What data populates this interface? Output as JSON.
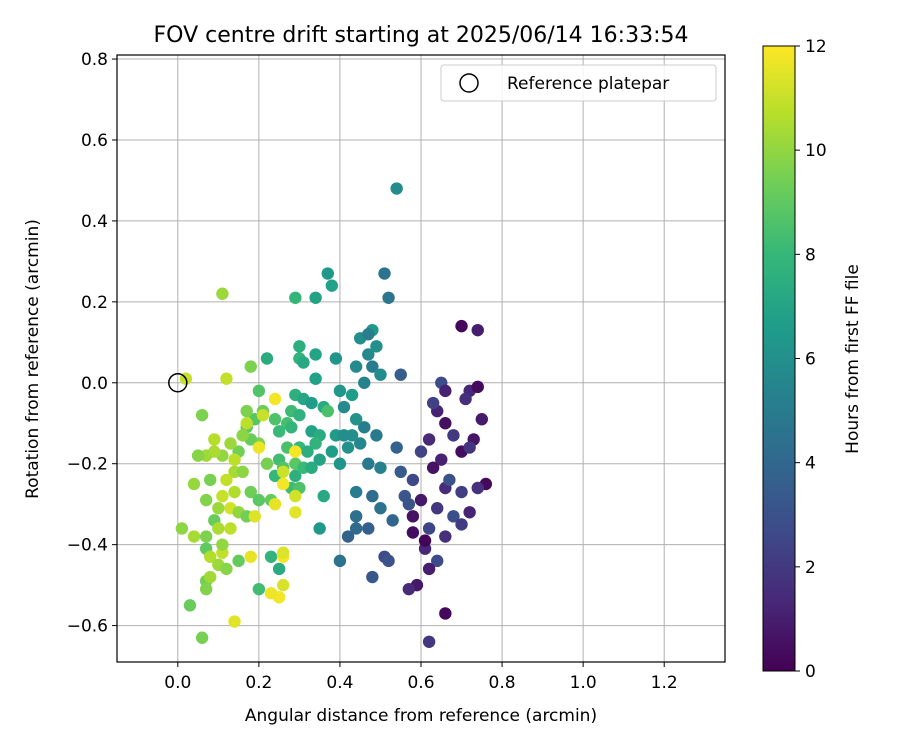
{
  "chart_data": {
    "type": "scatter",
    "title": "FOV centre drift starting at 2025/06/14 16:33:54",
    "xlabel": "Angular distance from reference (arcmin)",
    "ylabel": "Rotation from reference (arcmin)",
    "xlim": [
      -0.15,
      1.35
    ],
    "ylim": [
      -0.69,
      0.81
    ],
    "xticks": [
      0.0,
      0.2,
      0.4,
      0.6,
      0.8,
      1.0,
      1.2
    ],
    "xtick_labels": [
      "0.0",
      "0.2",
      "0.4",
      "0.6",
      "0.8",
      "1.0",
      "1.2"
    ],
    "yticks": [
      -0.6,
      -0.4,
      -0.2,
      0.0,
      0.2,
      0.4,
      0.6,
      0.8
    ],
    "ytick_labels": [
      "−0.6",
      "−0.4",
      "−0.2",
      "0.0",
      "0.2",
      "0.4",
      "0.6",
      "0.8"
    ],
    "grid": true,
    "legend": {
      "position": "upper-right",
      "entries": [
        "Reference platepar"
      ]
    },
    "reference_point": {
      "x": 0.0,
      "y": 0.0
    },
    "colorbar": {
      "label": "Hours from first FF file",
      "range": [
        0,
        12
      ],
      "ticks": [
        0,
        2,
        4,
        6,
        8,
        10,
        12
      ],
      "tick_labels": [
        "0",
        "2",
        "4",
        "6",
        "8",
        "10",
        "12"
      ],
      "colormap": "viridis",
      "colors": [
        "#440154",
        "#482878",
        "#3e4a89",
        "#31688e",
        "#26828e",
        "#1f9e89",
        "#35b779",
        "#6ece58",
        "#b5de2b",
        "#fde725"
      ]
    },
    "points": [
      {
        "x": 0.7,
        "y": 0.14,
        "h": 0.2
      },
      {
        "x": 0.74,
        "y": 0.13,
        "h": 1.0
      },
      {
        "x": 0.72,
        "y": -0.02,
        "h": 1.3
      },
      {
        "x": 0.74,
        "y": -0.01,
        "h": 0.3
      },
      {
        "x": 0.71,
        "y": -0.04,
        "h": 1.6
      },
      {
        "x": 0.75,
        "y": -0.09,
        "h": 0.9
      },
      {
        "x": 0.64,
        "y": -0.07,
        "h": 1.2
      },
      {
        "x": 0.66,
        "y": -0.1,
        "h": 0.5
      },
      {
        "x": 0.68,
        "y": -0.13,
        "h": 2.0
      },
      {
        "x": 0.73,
        "y": -0.14,
        "h": 0.7
      },
      {
        "x": 0.62,
        "y": -0.14,
        "h": 1.4
      },
      {
        "x": 0.6,
        "y": -0.17,
        "h": 2.4
      },
      {
        "x": 0.65,
        "y": -0.19,
        "h": 1.1
      },
      {
        "x": 0.7,
        "y": -0.17,
        "h": 0.4
      },
      {
        "x": 0.72,
        "y": -0.16,
        "h": 1.8
      },
      {
        "x": 0.63,
        "y": -0.21,
        "h": 0.6
      },
      {
        "x": 0.58,
        "y": -0.24,
        "h": 2.6
      },
      {
        "x": 0.66,
        "y": -0.26,
        "h": 1.5
      },
      {
        "x": 0.7,
        "y": -0.27,
        "h": 2.2
      },
      {
        "x": 0.76,
        "y": -0.25,
        "h": 0.3
      },
      {
        "x": 0.74,
        "y": -0.26,
        "h": 1.7
      },
      {
        "x": 0.6,
        "y": -0.29,
        "h": 0.8
      },
      {
        "x": 0.64,
        "y": -0.31,
        "h": 1.9
      },
      {
        "x": 0.68,
        "y": -0.33,
        "h": 2.9
      },
      {
        "x": 0.72,
        "y": -0.32,
        "h": 1.2
      },
      {
        "x": 0.56,
        "y": -0.28,
        "h": 3.2
      },
      {
        "x": 0.58,
        "y": -0.33,
        "h": 0.6
      },
      {
        "x": 0.62,
        "y": -0.36,
        "h": 2.5
      },
      {
        "x": 0.66,
        "y": -0.38,
        "h": 1.6
      },
      {
        "x": 0.7,
        "y": -0.35,
        "h": 2.1
      },
      {
        "x": 0.58,
        "y": -0.37,
        "h": 0.4
      },
      {
        "x": 0.61,
        "y": -0.41,
        "h": 1.3
      },
      {
        "x": 0.64,
        "y": -0.44,
        "h": 2.7
      },
      {
        "x": 0.62,
        "y": -0.46,
        "h": 1.0
      },
      {
        "x": 0.59,
        "y": -0.5,
        "h": 0.8
      },
      {
        "x": 0.57,
        "y": -0.51,
        "h": 1.4
      },
      {
        "x": 0.66,
        "y": -0.57,
        "h": 0.2
      },
      {
        "x": 0.62,
        "y": -0.64,
        "h": 1.9
      },
      {
        "x": 0.61,
        "y": -0.39,
        "h": 0.1
      },
      {
        "x": 0.67,
        "y": -0.24,
        "h": 3.0
      },
      {
        "x": 0.63,
        "y": -0.05,
        "h": 2.3
      },
      {
        "x": 0.65,
        "y": 0.0,
        "h": 2.8
      },
      {
        "x": 0.66,
        "y": -0.02,
        "h": 1.1
      },
      {
        "x": 0.55,
        "y": 0.02,
        "h": 3.5
      },
      {
        "x": 0.54,
        "y": -0.16,
        "h": 3.8
      },
      {
        "x": 0.55,
        "y": -0.22,
        "h": 3.4
      },
      {
        "x": 0.57,
        "y": -0.3,
        "h": 3.1
      },
      {
        "x": 0.53,
        "y": -0.34,
        "h": 3.9
      },
      {
        "x": 0.51,
        "y": -0.43,
        "h": 2.7
      },
      {
        "x": 0.52,
        "y": -0.44,
        "h": 3.0
      },
      {
        "x": 0.48,
        "y": -0.48,
        "h": 3.3
      },
      {
        "x": 0.47,
        "y": -0.36,
        "h": 3.6
      },
      {
        "x": 0.44,
        "y": -0.33,
        "h": 4.4
      },
      {
        "x": 0.48,
        "y": -0.28,
        "h": 4.2
      },
      {
        "x": 0.5,
        "y": -0.31,
        "h": 4.6
      },
      {
        "x": 0.47,
        "y": -0.2,
        "h": 4.8
      },
      {
        "x": 0.5,
        "y": -0.21,
        "h": 5.3
      },
      {
        "x": 0.49,
        "y": -0.13,
        "h": 4.9
      },
      {
        "x": 0.44,
        "y": -0.27,
        "h": 5.0
      },
      {
        "x": 0.42,
        "y": -0.38,
        "h": 3.8
      },
      {
        "x": 0.4,
        "y": -0.44,
        "h": 4.5
      },
      {
        "x": 0.44,
        "y": -0.36,
        "h": 4.1
      },
      {
        "x": 0.45,
        "y": -0.15,
        "h": 5.5
      },
      {
        "x": 0.43,
        "y": -0.13,
        "h": 5.9
      },
      {
        "x": 0.46,
        "y": -0.11,
        "h": 5.2
      },
      {
        "x": 0.44,
        "y": -0.09,
        "h": 6.1
      },
      {
        "x": 0.41,
        "y": -0.06,
        "h": 5.7
      },
      {
        "x": 0.4,
        "y": -0.02,
        "h": 6.3
      },
      {
        "x": 0.46,
        "y": 0.0,
        "h": 5.4
      },
      {
        "x": 0.48,
        "y": 0.04,
        "h": 5.0
      },
      {
        "x": 0.5,
        "y": 0.02,
        "h": 5.8
      },
      {
        "x": 0.47,
        "y": 0.07,
        "h": 5.6
      },
      {
        "x": 0.45,
        "y": 0.11,
        "h": 5.9
      },
      {
        "x": 0.48,
        "y": 0.13,
        "h": 6.4
      },
      {
        "x": 0.47,
        "y": 0.12,
        "h": 5.1
      },
      {
        "x": 0.49,
        "y": 0.09,
        "h": 6.0
      },
      {
        "x": 0.44,
        "y": 0.04,
        "h": 5.7
      },
      {
        "x": 0.43,
        "y": -0.03,
        "h": 6.6
      },
      {
        "x": 0.39,
        "y": 0.06,
        "h": 6.2
      },
      {
        "x": 0.52,
        "y": 0.21,
        "h": 4.7
      },
      {
        "x": 0.51,
        "y": 0.27,
        "h": 4.6
      },
      {
        "x": 0.54,
        "y": 0.48,
        "h": 5.8
      },
      {
        "x": 0.37,
        "y": 0.27,
        "h": 6.4
      },
      {
        "x": 0.38,
        "y": 0.24,
        "h": 6.8
      },
      {
        "x": 0.34,
        "y": 0.21,
        "h": 6.9
      },
      {
        "x": 0.29,
        "y": 0.21,
        "h": 7.9
      },
      {
        "x": 0.34,
        "y": 0.07,
        "h": 7.0
      },
      {
        "x": 0.3,
        "y": 0.06,
        "h": 7.8
      },
      {
        "x": 0.31,
        "y": 0.05,
        "h": 7.2
      },
      {
        "x": 0.3,
        "y": 0.09,
        "h": 7.5
      },
      {
        "x": 0.22,
        "y": 0.06,
        "h": 7.4
      },
      {
        "x": 0.34,
        "y": 0.01,
        "h": 6.8
      },
      {
        "x": 0.29,
        "y": -0.03,
        "h": 7.6
      },
      {
        "x": 0.31,
        "y": -0.04,
        "h": 7.1
      },
      {
        "x": 0.33,
        "y": -0.05,
        "h": 6.6
      },
      {
        "x": 0.36,
        "y": -0.06,
        "h": 7.3
      },
      {
        "x": 0.28,
        "y": -0.07,
        "h": 8.2
      },
      {
        "x": 0.3,
        "y": -0.08,
        "h": 7.7
      },
      {
        "x": 0.27,
        "y": -0.1,
        "h": 8.4
      },
      {
        "x": 0.24,
        "y": -0.09,
        "h": 8.6
      },
      {
        "x": 0.25,
        "y": -0.12,
        "h": 8.1
      },
      {
        "x": 0.28,
        "y": -0.11,
        "h": 7.9
      },
      {
        "x": 0.33,
        "y": -0.12,
        "h": 6.9
      },
      {
        "x": 0.35,
        "y": -0.13,
        "h": 7.4
      },
      {
        "x": 0.34,
        "y": -0.15,
        "h": 7.8
      },
      {
        "x": 0.3,
        "y": -0.16,
        "h": 8.0
      },
      {
        "x": 0.32,
        "y": -0.17,
        "h": 7.5
      },
      {
        "x": 0.35,
        "y": -0.19,
        "h": 7.0
      },
      {
        "x": 0.39,
        "y": -0.13,
        "h": 6.5
      },
      {
        "x": 0.4,
        "y": -0.2,
        "h": 6.2
      },
      {
        "x": 0.41,
        "y": -0.13,
        "h": 5.9
      },
      {
        "x": 0.42,
        "y": -0.16,
        "h": 6.1
      },
      {
        "x": 0.38,
        "y": -0.17,
        "h": 6.6
      },
      {
        "x": 0.27,
        "y": -0.16,
        "h": 8.5
      },
      {
        "x": 0.25,
        "y": -0.19,
        "h": 8.3
      },
      {
        "x": 0.29,
        "y": -0.2,
        "h": 8.9
      },
      {
        "x": 0.26,
        "y": -0.21,
        "h": 8.7
      },
      {
        "x": 0.24,
        "y": -0.23,
        "h": 8.0
      },
      {
        "x": 0.29,
        "y": -0.23,
        "h": 7.6
      },
      {
        "x": 0.31,
        "y": -0.21,
        "h": 8.1
      },
      {
        "x": 0.33,
        "y": -0.21,
        "h": 7.4
      },
      {
        "x": 0.36,
        "y": -0.28,
        "h": 7.2
      },
      {
        "x": 0.35,
        "y": -0.36,
        "h": 6.4
      },
      {
        "x": 0.28,
        "y": -0.26,
        "h": 8.2
      },
      {
        "x": 0.3,
        "y": -0.26,
        "h": 8.6
      },
      {
        "x": 0.22,
        "y": -0.2,
        "h": 9.5
      },
      {
        "x": 0.2,
        "y": -0.15,
        "h": 9.7
      },
      {
        "x": 0.18,
        "y": -0.14,
        "h": 9.2
      },
      {
        "x": 0.17,
        "y": -0.11,
        "h": 9.0
      },
      {
        "x": 0.19,
        "y": -0.09,
        "h": 8.8
      },
      {
        "x": 0.21,
        "y": -0.07,
        "h": 9.3
      },
      {
        "x": 0.17,
        "y": -0.07,
        "h": 9.6
      },
      {
        "x": 0.2,
        "y": -0.02,
        "h": 8.7
      },
      {
        "x": 0.16,
        "y": -0.13,
        "h": 9.9
      },
      {
        "x": 0.15,
        "y": -0.17,
        "h": 9.4
      },
      {
        "x": 0.13,
        "y": -0.15,
        "h": 10.2
      },
      {
        "x": 0.11,
        "y": -0.18,
        "h": 10.0
      },
      {
        "x": 0.09,
        "y": -0.17,
        "h": 10.5
      },
      {
        "x": 0.07,
        "y": -0.18,
        "h": 10.3
      },
      {
        "x": 0.05,
        "y": -0.18,
        "h": 9.8
      },
      {
        "x": 0.09,
        "y": -0.14,
        "h": 10.7
      },
      {
        "x": 0.06,
        "y": -0.08,
        "h": 9.6
      },
      {
        "x": 0.14,
        "y": -0.19,
        "h": 10.8
      },
      {
        "x": 0.14,
        "y": -0.22,
        "h": 10.4
      },
      {
        "x": 0.16,
        "y": -0.22,
        "h": 9.9
      },
      {
        "x": 0.12,
        "y": -0.24,
        "h": 10.9
      },
      {
        "x": 0.08,
        "y": -0.24,
        "h": 9.5
      },
      {
        "x": 0.04,
        "y": -0.25,
        "h": 10.1
      },
      {
        "x": 0.11,
        "y": -0.28,
        "h": 11.0
      },
      {
        "x": 0.14,
        "y": -0.27,
        "h": 10.6
      },
      {
        "x": 0.18,
        "y": -0.27,
        "h": 9.3
      },
      {
        "x": 0.2,
        "y": -0.29,
        "h": 8.9
      },
      {
        "x": 0.23,
        "y": -0.29,
        "h": 9.1
      },
      {
        "x": 0.07,
        "y": -0.29,
        "h": 9.7
      },
      {
        "x": 0.1,
        "y": -0.31,
        "h": 10.2
      },
      {
        "x": 0.13,
        "y": -0.31,
        "h": 11.2
      },
      {
        "x": 0.15,
        "y": -0.32,
        "h": 10.0
      },
      {
        "x": 0.17,
        "y": -0.33,
        "h": 9.4
      },
      {
        "x": 0.19,
        "y": -0.33,
        "h": 11.4
      },
      {
        "x": 0.09,
        "y": -0.34,
        "h": 9.2
      },
      {
        "x": 0.1,
        "y": -0.36,
        "h": 10.5
      },
      {
        "x": 0.13,
        "y": -0.36,
        "h": 10.8
      },
      {
        "x": 0.01,
        "y": -0.36,
        "h": 9.9
      },
      {
        "x": 0.04,
        "y": -0.38,
        "h": 10.4
      },
      {
        "x": 0.07,
        "y": -0.38,
        "h": 9.6
      },
      {
        "x": 0.07,
        "y": -0.41,
        "h": 9.0
      },
      {
        "x": 0.08,
        "y": -0.43,
        "h": 10.6
      },
      {
        "x": 0.11,
        "y": -0.42,
        "h": 10.9
      },
      {
        "x": 0.1,
        "y": -0.45,
        "h": 10.2
      },
      {
        "x": 0.12,
        "y": -0.46,
        "h": 9.8
      },
      {
        "x": 0.15,
        "y": -0.44,
        "h": 9.1
      },
      {
        "x": 0.11,
        "y": -0.4,
        "h": 10.0
      },
      {
        "x": 0.07,
        "y": -0.49,
        "h": 9.4
      },
      {
        "x": 0.08,
        "y": -0.48,
        "h": 10.3
      },
      {
        "x": 0.07,
        "y": -0.51,
        "h": 9.7
      },
      {
        "x": 0.03,
        "y": -0.55,
        "h": 9.2
      },
      {
        "x": 0.06,
        "y": -0.63,
        "h": 9.5
      },
      {
        "x": 0.14,
        "y": -0.59,
        "h": 11.5
      },
      {
        "x": 0.18,
        "y": -0.43,
        "h": 11.6
      },
      {
        "x": 0.2,
        "y": -0.51,
        "h": 8.3
      },
      {
        "x": 0.23,
        "y": -0.43,
        "h": 7.8
      },
      {
        "x": 0.25,
        "y": -0.46,
        "h": 7.3
      },
      {
        "x": 0.25,
        "y": -0.53,
        "h": 11.8
      },
      {
        "x": 0.23,
        "y": -0.52,
        "h": 11.7
      },
      {
        "x": 0.26,
        "y": -0.5,
        "h": 11.3
      },
      {
        "x": 0.26,
        "y": -0.43,
        "h": 11.9
      },
      {
        "x": 0.26,
        "y": -0.42,
        "h": 11.4
      },
      {
        "x": 0.24,
        "y": -0.3,
        "h": 11.6
      },
      {
        "x": 0.26,
        "y": -0.25,
        "h": 11.8
      },
      {
        "x": 0.29,
        "y": -0.28,
        "h": 11.2
      },
      {
        "x": 0.29,
        "y": -0.32,
        "h": 11.5
      },
      {
        "x": 0.26,
        "y": -0.22,
        "h": 11.1
      },
      {
        "x": 0.29,
        "y": -0.17,
        "h": 11.9
      },
      {
        "x": 0.2,
        "y": -0.16,
        "h": 11.7
      },
      {
        "x": 0.24,
        "y": -0.04,
        "h": 11.8
      },
      {
        "x": 0.21,
        "y": -0.08,
        "h": 11.0
      },
      {
        "x": 0.17,
        "y": -0.1,
        "h": 10.8
      },
      {
        "x": 0.12,
        "y": 0.01,
        "h": 10.9
      },
      {
        "x": 0.02,
        "y": 0.01,
        "h": 11.0
      },
      {
        "x": 0.11,
        "y": 0.22,
        "h": 10.2
      },
      {
        "x": 0.18,
        "y": 0.04,
        "h": 9.6
      },
      {
        "x": 0.37,
        "y": -0.07,
        "h": 8.5
      }
    ]
  }
}
